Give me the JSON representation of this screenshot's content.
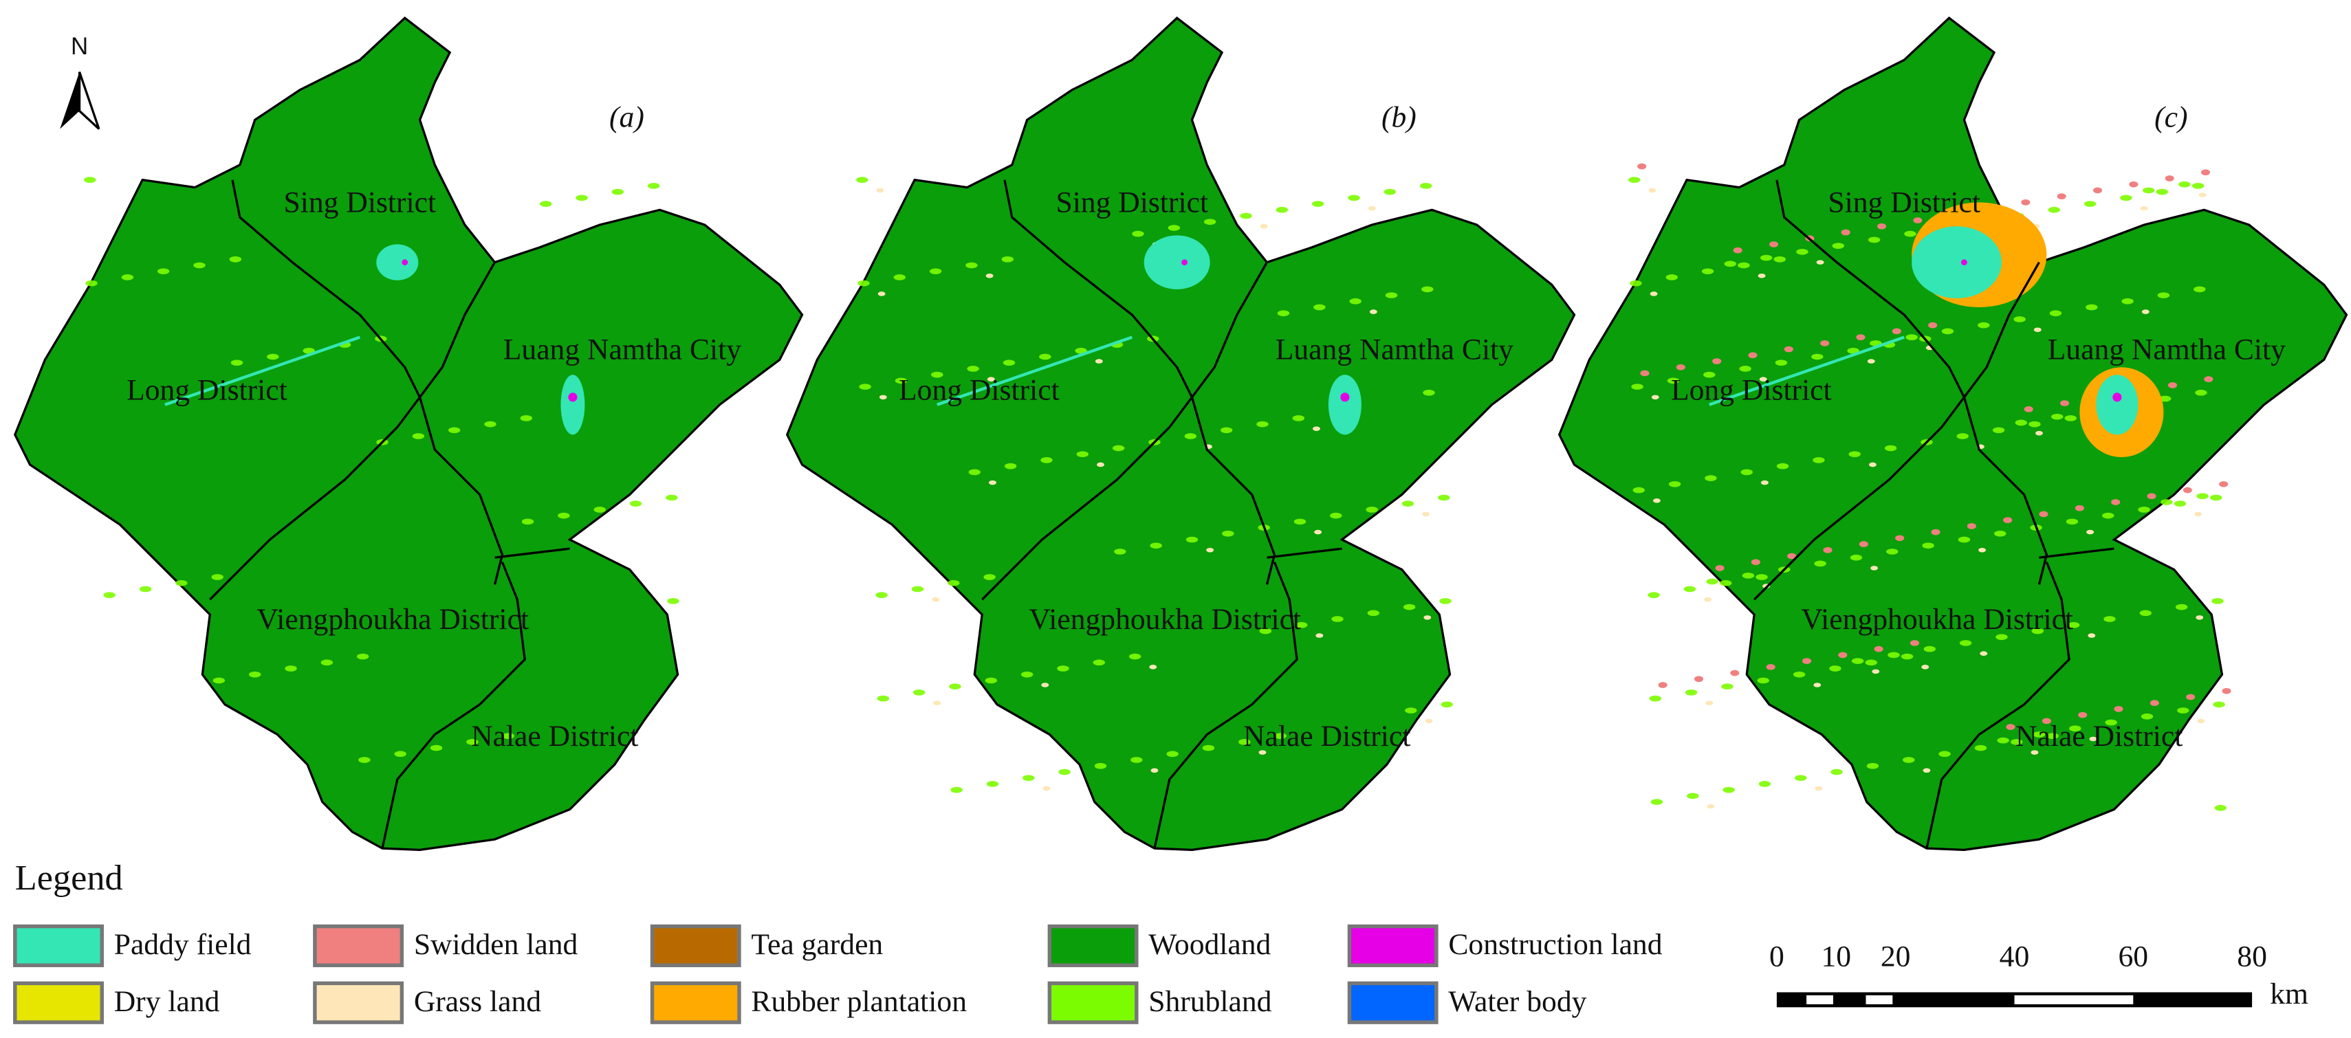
{
  "north": "N",
  "panels": [
    {
      "label": "(a)",
      "districts": [
        "Sing District",
        "Long District",
        "Luang Namtha City",
        "Viengphoukha District",
        "Nalae District"
      ]
    },
    {
      "label": "(b)",
      "districts": [
        "Sing District",
        "Long District",
        "Luang Namtha City",
        "Viengphoukha District",
        "Nalae District"
      ]
    },
    {
      "label": "(c)",
      "districts": [
        "Sing District",
        "Long District",
        "Luang Namtha City",
        "Viengphoukha District",
        "Nalae District"
      ]
    }
  ],
  "legend": {
    "title": "Legend",
    "items": [
      {
        "name": "Paddy field",
        "color": "#33e6b4"
      },
      {
        "name": "Swidden land",
        "color": "#f08080"
      },
      {
        "name": "Tea garden",
        "color": "#b86a00"
      },
      {
        "name": "Woodland",
        "color": "#0a9e0a"
      },
      {
        "name": "Construction land",
        "color": "#e600e6"
      },
      {
        "name": "Dry land",
        "color": "#e6e600"
      },
      {
        "name": "Grass land",
        "color": "#ffe6b8"
      },
      {
        "name": "Rubber plantation",
        "color": "#ffaa00"
      },
      {
        "name": "Shrubland",
        "color": "#7cfc00"
      },
      {
        "name": "Water body",
        "color": "#0066ff"
      }
    ]
  },
  "scale_bar": {
    "ticks": [
      0,
      10,
      20,
      40,
      60,
      80
    ],
    "unit": "km"
  }
}
